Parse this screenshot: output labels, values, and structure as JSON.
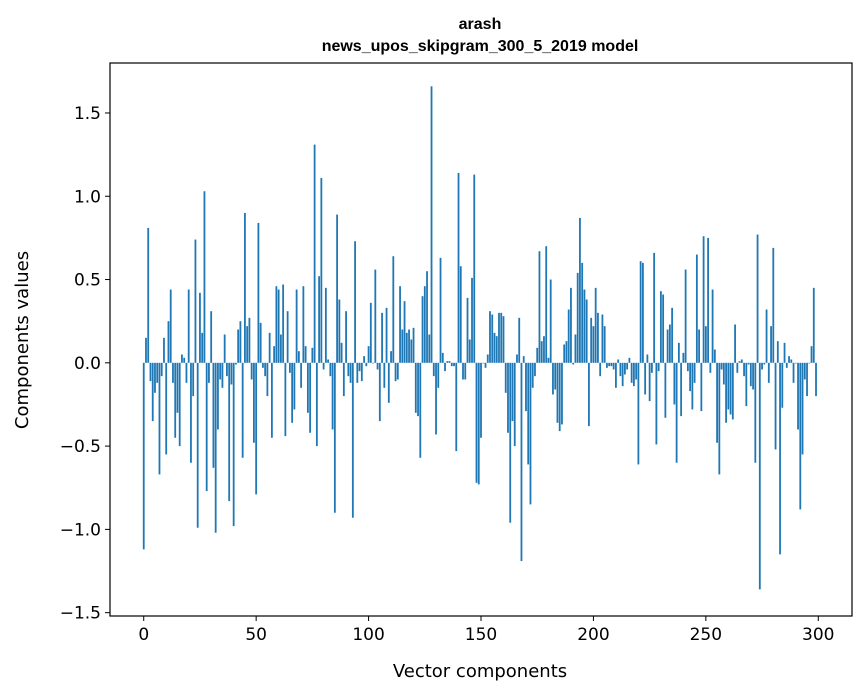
{
  "chart_data": {
    "type": "bar",
    "title": "arash",
    "subtitle": "news_upos_skipgram_300_5_2019 model",
    "xlabel": "Vector components",
    "ylabel": "Components values",
    "xlim": [
      -15,
      315
    ],
    "ylim": [
      -1.52,
      1.8
    ],
    "x_ticks": [
      0,
      50,
      100,
      150,
      200,
      250,
      300
    ],
    "x_tick_labels": [
      "0",
      "50",
      "100",
      "150",
      "200",
      "250",
      "300"
    ],
    "y_ticks": [
      -1.5,
      -1.0,
      -0.5,
      0.0,
      0.5,
      1.0,
      1.5
    ],
    "y_tick_labels": [
      "−1.5",
      "−1.0",
      "−0.5",
      "0.0",
      "0.5",
      "1.0",
      "1.5"
    ],
    "bar_color": "#1f77b4",
    "bar_width": 0.8,
    "values": [
      -1.12,
      0.15,
      0.81,
      -0.11,
      -0.35,
      -0.18,
      -0.12,
      -0.67,
      -0.08,
      0.15,
      -0.55,
      0.25,
      0.44,
      -0.12,
      -0.45,
      -0.3,
      -0.5,
      0.05,
      0.03,
      -0.12,
      0.44,
      -0.6,
      -0.2,
      0.74,
      -0.99,
      0.42,
      0.18,
      1.03,
      -0.77,
      -0.12,
      0.31,
      -0.63,
      -1.02,
      -0.4,
      -0.1,
      -0.15,
      0.17,
      -0.08,
      -0.83,
      -0.13,
      -0.98,
      -0.01,
      0.2,
      0.25,
      -0.57,
      0.9,
      0.22,
      0.27,
      -0.1,
      -0.48,
      -0.79,
      0.84,
      0.24,
      -0.03,
      -0.08,
      -0.2,
      0.18,
      -0.45,
      0.1,
      0.46,
      0.44,
      0.17,
      0.47,
      -0.44,
      0.31,
      -0.06,
      -0.36,
      -0.28,
      0.44,
      0.07,
      -0.15,
      0.46,
      0.1,
      -0.3,
      -0.42,
      0.09,
      1.31,
      -0.5,
      0.52,
      1.11,
      -0.04,
      0.45,
      0.02,
      -0.08,
      -0.4,
      -0.9,
      0.89,
      0.38,
      0.12,
      -0.2,
      0.31,
      -0.08,
      -0.12,
      -0.93,
      0.73,
      -0.12,
      -0.05,
      -0.11,
      0.04,
      -0.02,
      0.1,
      0.36,
      0.0,
      0.56,
      -0.04,
      -0.35,
      0.3,
      -0.15,
      0.33,
      -0.24,
      0.07,
      0.64,
      -0.11,
      -0.1,
      0.46,
      0.2,
      0.37,
      0.18,
      0.2,
      0.14,
      0.21,
      -0.3,
      -0.32,
      -0.57,
      0.4,
      0.46,
      0.55,
      0.17,
      1.66,
      -0.08,
      -0.43,
      -0.15,
      0.63,
      0.06,
      -0.05,
      0.01,
      0.01,
      -0.02,
      -0.02,
      -0.53,
      1.14,
      0.58,
      -0.1,
      -0.1,
      0.39,
      0.14,
      0.51,
      1.13,
      -0.72,
      -0.73,
      -0.45,
      0.0,
      -0.03,
      0.05,
      0.31,
      0.29,
      0.18,
      0.16,
      0.3,
      0.3,
      0.28,
      -0.18,
      -0.42,
      -0.96,
      -0.35,
      -0.5,
      0.05,
      0.27,
      -1.19,
      0.04,
      -0.29,
      -0.61,
      -0.85,
      -0.15,
      -0.08,
      0.09,
      0.67,
      0.13,
      0.16,
      0.7,
      0.03,
      0.5,
      -0.19,
      -0.16,
      -0.36,
      -0.41,
      -0.37,
      0.11,
      0.13,
      0.32,
      0.45,
      -0.01,
      0.17,
      0.54,
      0.87,
      0.6,
      0.44,
      0.38,
      -0.38,
      0.27,
      0.22,
      0.45,
      0.3,
      -0.08,
      0.29,
      0.22,
      -0.03,
      -0.02,
      -0.02,
      -0.04,
      -0.15,
      0.02,
      -0.08,
      -0.14,
      -0.07,
      -0.04,
      0.03,
      -0.12,
      -0.14,
      -0.1,
      -0.61,
      0.61,
      0.6,
      -0.19,
      0.05,
      -0.23,
      -0.06,
      0.66,
      -0.49,
      -0.05,
      0.43,
      0.41,
      -0.33,
      0.2,
      0.23,
      0.33,
      -0.25,
      -0.6,
      0.12,
      -0.32,
      0.06,
      0.56,
      -0.05,
      -0.17,
      -0.28,
      -0.12,
      0.65,
      0.2,
      -0.29,
      0.76,
      0.22,
      0.75,
      -0.06,
      0.44,
      0.08,
      -0.48,
      -0.67,
      -0.04,
      -0.13,
      -0.36,
      -0.28,
      -0.31,
      -0.34,
      0.23,
      -0.06,
      0.01,
      0.02,
      -0.08,
      -0.26,
      -0.01,
      -0.14,
      -0.16,
      -0.6,
      0.77,
      -1.36,
      -0.04,
      -0.01,
      0.32,
      -0.12,
      0.22,
      0.69,
      -0.52,
      0.13,
      -1.15,
      -0.27,
      0.12,
      -0.03,
      0.04,
      0.02,
      -0.12,
      0.0,
      -0.4,
      -0.88,
      -0.55,
      -0.1,
      -0.2,
      0.0,
      0.1,
      0.45,
      -0.2
    ]
  }
}
